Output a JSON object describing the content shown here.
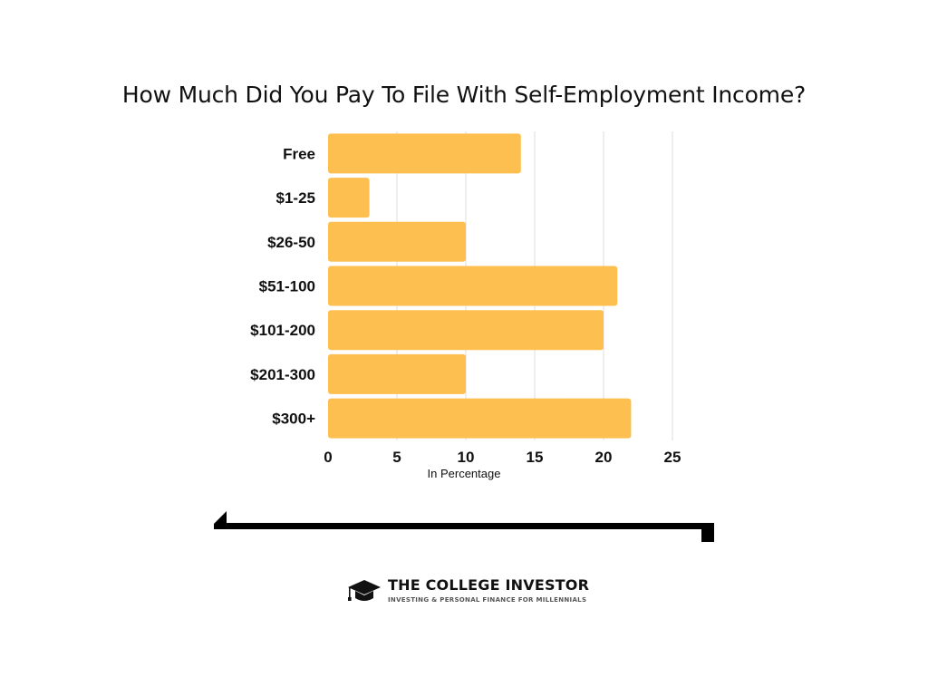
{
  "colors": {
    "bar": "#FDBF50",
    "grid": "#DDDDDD",
    "text": "#111111",
    "divider": "#000000"
  },
  "chart_data": {
    "type": "bar",
    "orientation": "horizontal",
    "title": "How Much Did You Pay To File With Self-Employment Income?",
    "xlabel": "In Percentage",
    "ylabel": "",
    "categories": [
      "Free",
      "$1-25",
      "$26-50",
      "$51-100",
      "$101-200",
      "$201-300",
      "$300+"
    ],
    "values": [
      14,
      3,
      10,
      21,
      20,
      10,
      22
    ],
    "xlim": [
      0,
      25
    ],
    "xticks": [
      0,
      5,
      10,
      15,
      20,
      25
    ],
    "grid": true,
    "legend": "none"
  },
  "logo": {
    "icon": "graduation-cap-icon",
    "name": "THE COLLEGE INVESTOR",
    "tagline": "INVESTING & PERSONAL FINANCE FOR MILLENNIALS"
  }
}
